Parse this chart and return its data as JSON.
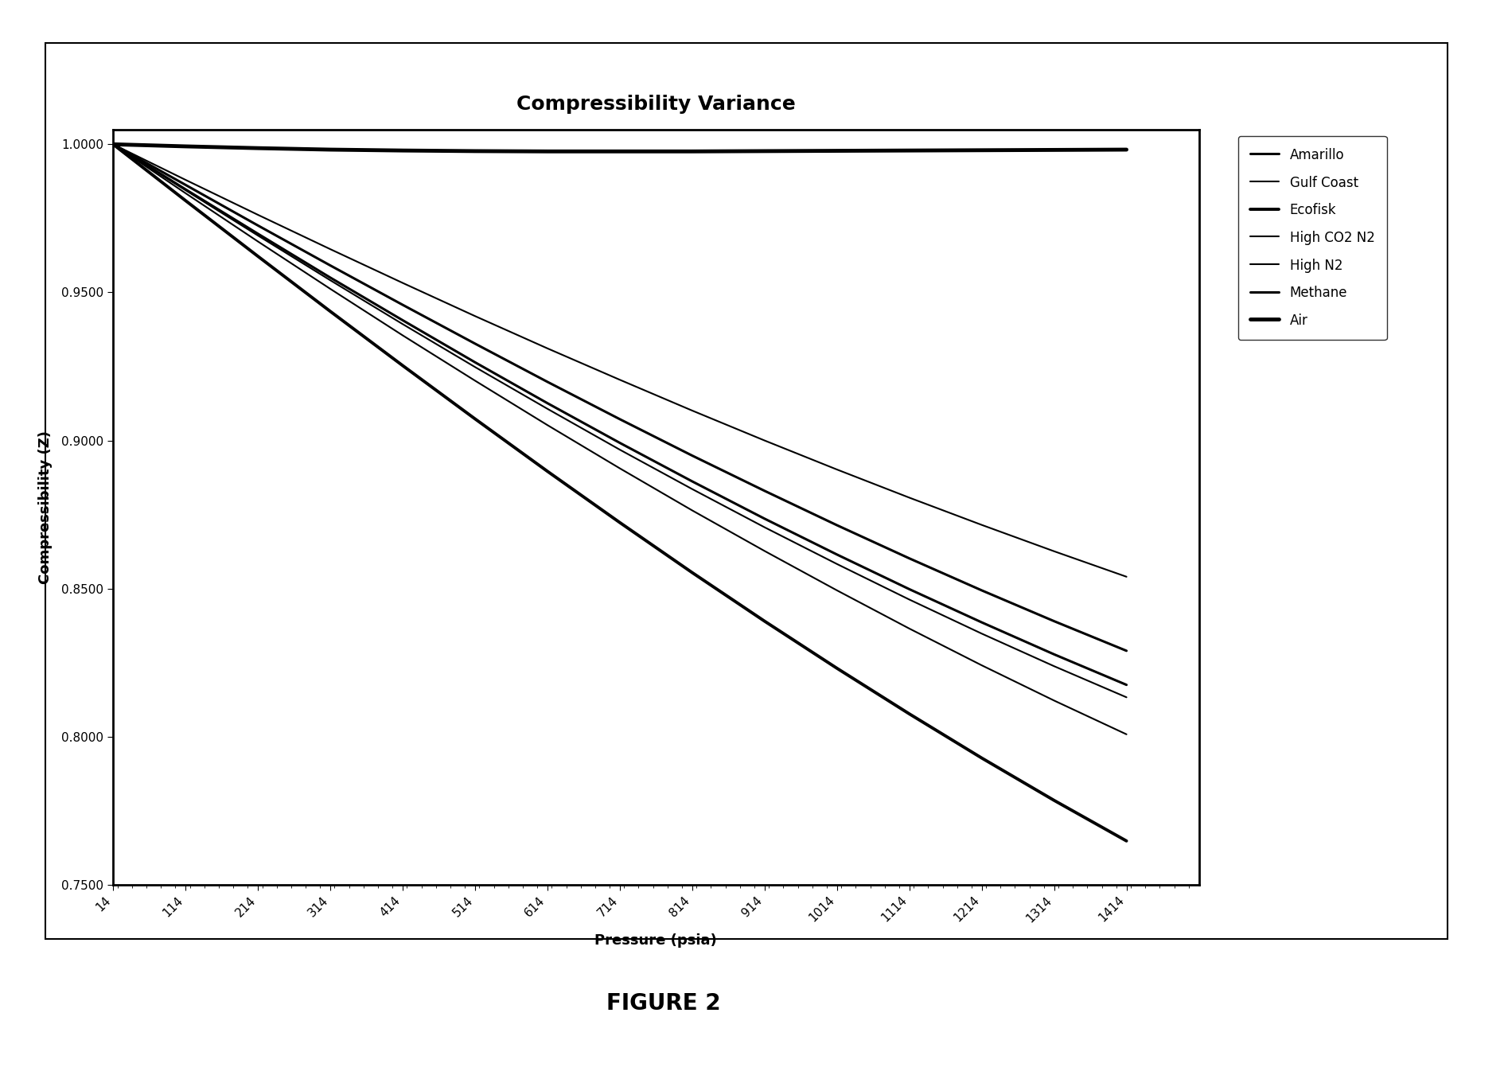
{
  "title": "Compressibility Variance",
  "xlabel": "Pressure (psia)",
  "ylabel": "Compressibility (Z)",
  "yticks": [
    0.75,
    0.8,
    0.85,
    0.9,
    0.95,
    1.0
  ],
  "xtick_values": [
    14,
    114,
    214,
    314,
    414,
    514,
    614,
    714,
    814,
    914,
    1014,
    1114,
    1214,
    1314,
    1414
  ],
  "pressure_points": [
    14,
    114,
    214,
    314,
    414,
    514,
    614,
    714,
    814,
    914,
    1014,
    1114,
    1214,
    1314,
    1414
  ],
  "series": {
    "Amarillo": [
      1.0,
      0.9863,
      0.9726,
      0.9591,
      0.9458,
      0.9327,
      0.9198,
      0.9072,
      0.8949,
      0.883,
      0.8714,
      0.8602,
      0.8494,
      0.839,
      0.829
    ],
    "Gulf Coast": [
      1.0,
      0.9845,
      0.9692,
      0.9541,
      0.9393,
      0.9248,
      0.9107,
      0.8969,
      0.8836,
      0.8707,
      0.8583,
      0.8463,
      0.8348,
      0.8238,
      0.8133
    ],
    "Ecofisk": [
      1.0,
      0.981,
      0.9622,
      0.9436,
      0.9253,
      0.9073,
      0.8896,
      0.8723,
      0.8554,
      0.839,
      0.8231,
      0.8077,
      0.7928,
      0.7785,
      0.7648
    ],
    "High CO2 N2": [
      1.0,
      0.9835,
      0.9672,
      0.9512,
      0.9355,
      0.9202,
      0.9052,
      0.8906,
      0.8764,
      0.8627,
      0.8494,
      0.8365,
      0.8241,
      0.8122,
      0.8008
    ],
    "High N2": [
      1.0,
      0.988,
      0.9762,
      0.9646,
      0.9532,
      0.942,
      0.9311,
      0.9205,
      0.9101,
      0.9,
      0.8902,
      0.8807,
      0.8715,
      0.8626,
      0.854
    ],
    "Methane": [
      1.0,
      0.9848,
      0.9698,
      0.955,
      0.9406,
      0.9264,
      0.9126,
      0.8992,
      0.8862,
      0.8736,
      0.8615,
      0.8498,
      0.8386,
      0.8278,
      0.8175
    ],
    "Air": [
      1.0,
      0.9993,
      0.9987,
      0.9982,
      0.9979,
      0.9977,
      0.9976,
      0.9976,
      0.9976,
      0.9977,
      0.9978,
      0.9979,
      0.998,
      0.9981,
      0.9982
    ]
  },
  "line_configs": [
    {
      "name": "Amarillo",
      "linestyle": "-",
      "linewidth": 2.2
    },
    {
      "name": "Gulf Coast",
      "linestyle": "-",
      "linewidth": 1.5
    },
    {
      "name": "Ecofisk",
      "linestyle": "-",
      "linewidth": 2.8
    },
    {
      "name": "High CO2 N2",
      "linestyle": "-",
      "linewidth": 1.5
    },
    {
      "name": "High N2",
      "linestyle": "-",
      "linewidth": 1.5
    },
    {
      "name": "Methane",
      "linestyle": "-",
      "linewidth": 2.2
    },
    {
      "name": "Air",
      "linestyle": "-",
      "linewidth": 3.5
    }
  ],
  "background_color": "#ffffff",
  "figure_caption": "FIGURE 2",
  "title_fontsize": 18,
  "label_fontsize": 13,
  "tick_fontsize": 11,
  "legend_fontsize": 12
}
